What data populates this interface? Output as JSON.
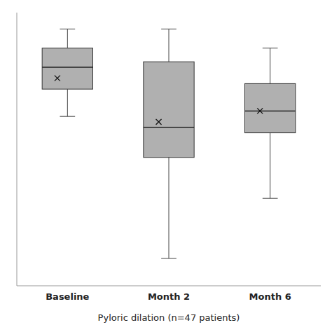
{
  "chart_data": {
    "type": "box",
    "xlabel": "Pyloric dilation (n=47 patients)",
    "categories": [
      "Baseline",
      "Month 2",
      "Month 6"
    ],
    "boxes": [
      {
        "whisker_low": 0.62,
        "q1": 0.72,
        "median": 0.8,
        "q3": 0.87,
        "whisker_high": 0.94,
        "mean": 0.76
      },
      {
        "whisker_low": 0.1,
        "q1": 0.47,
        "median": 0.58,
        "q3": 0.82,
        "whisker_high": 0.94,
        "mean": 0.6
      },
      {
        "whisker_low": 0.32,
        "q1": 0.56,
        "median": 0.64,
        "q3": 0.74,
        "whisker_high": 0.87,
        "mean": 0.64
      }
    ],
    "ylim": [
      0.0,
      1.0
    ],
    "tick_labels": "x",
    "color": "#b0b0b0",
    "marker": "x"
  }
}
